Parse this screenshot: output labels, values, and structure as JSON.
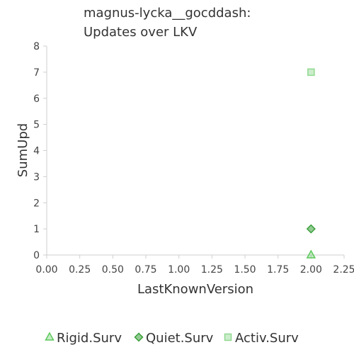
{
  "chart_data": {
    "type": "scatter",
    "title_lines": [
      "magnus-lycka__gocddash:",
      "Updates over LKV"
    ],
    "xlabel": "LastKnownVersion",
    "ylabel": "SumUpd",
    "xlim": [
      0,
      2.25
    ],
    "ylim": [
      0,
      8
    ],
    "xticks": [
      "0.00",
      "0.25",
      "0.50",
      "0.75",
      "1.00",
      "1.25",
      "1.50",
      "1.75",
      "2.00",
      "2.25"
    ],
    "yticks": [
      "0",
      "1",
      "2",
      "3",
      "4",
      "5",
      "6",
      "7",
      "8"
    ],
    "grid": false,
    "legend_position": "bottom",
    "series": [
      {
        "name": "Rigid.Surv",
        "marker": "triangle",
        "color": "#5cc85c",
        "points": [
          {
            "x": 2.0,
            "y": 0
          }
        ]
      },
      {
        "name": "Quiet.Surv",
        "marker": "diamond",
        "color": "#3aa03a",
        "points": [
          {
            "x": 2.0,
            "y": 1
          }
        ]
      },
      {
        "name": "Activ.Surv",
        "marker": "square",
        "color": "#8fd88f",
        "points": [
          {
            "x": 2.0,
            "y": 7
          }
        ]
      }
    ]
  }
}
